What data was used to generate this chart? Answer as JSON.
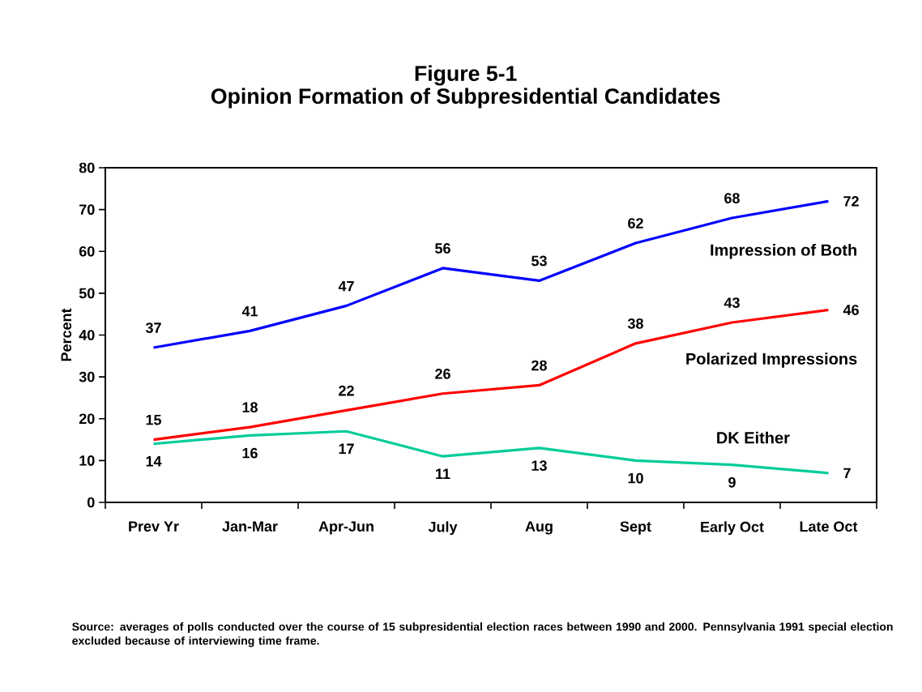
{
  "chart_data": {
    "type": "line",
    "title": "Figure 5-1",
    "subtitle": "Opinion Formation of Subpresidential Candidates",
    "ylabel": "Percent",
    "categories": [
      "Prev Yr",
      "Jan-Mar",
      "Apr-Jun",
      "July",
      "Aug",
      "Sept",
      "Early Oct",
      "Late Oct"
    ],
    "series": [
      {
        "name": "Impression of Both",
        "color": "#0000ff",
        "values": [
          37,
          41,
          47,
          56,
          53,
          62,
          68,
          72
        ]
      },
      {
        "name": "Polarized Impressions",
        "color": "#ff0000",
        "values": [
          15,
          18,
          22,
          26,
          28,
          38,
          43,
          46
        ]
      },
      {
        "name": "DK Either",
        "color": "#00cc99",
        "values": [
          14,
          16,
          17,
          11,
          13,
          10,
          9,
          7
        ]
      }
    ],
    "ylim": [
      0,
      80
    ],
    "yticks": [
      0,
      10,
      20,
      30,
      40,
      50,
      60,
      70,
      80
    ],
    "data_labels": true,
    "annotations": [
      "Source: averages of polls conducted over the course of 15 subpresidential election races between 1990 and 2000. Pennsylvania 1991 special election excluded because of interviewing time frame."
    ]
  }
}
